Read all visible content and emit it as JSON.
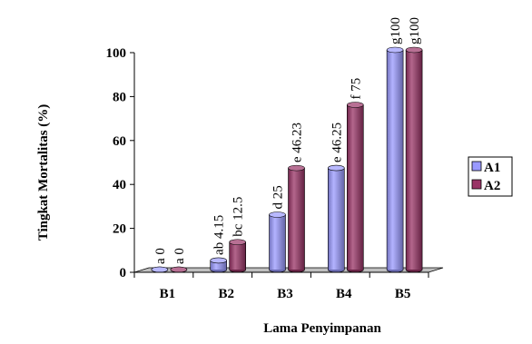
{
  "chart_data": {
    "type": "bar",
    "title": "",
    "xlabel": "Lama Penyimpanan",
    "ylabel": "Tingkat  Mortalitas (%)",
    "categories": [
      "B1",
      "B2",
      "B3",
      "B4",
      "B5"
    ],
    "ylim": [
      0,
      100
    ],
    "yticks": [
      0,
      20,
      40,
      60,
      80,
      100
    ],
    "grid": false,
    "legend_position": "right",
    "series": [
      {
        "name": "A1",
        "color": "#9999ff",
        "values": [
          0,
          4.15,
          25,
          46.25,
          100
        ],
        "labels": [
          "a 0",
          "ab 4.15",
          "d 25",
          "e 46.25",
          "g100"
        ]
      },
      {
        "name": "A2",
        "color": "#993366",
        "values": [
          0,
          12.5,
          46.23,
          75,
          100
        ],
        "labels": [
          "a 0",
          "bc 12.5",
          "e 46.23",
          "f 75",
          "g100"
        ]
      }
    ]
  }
}
